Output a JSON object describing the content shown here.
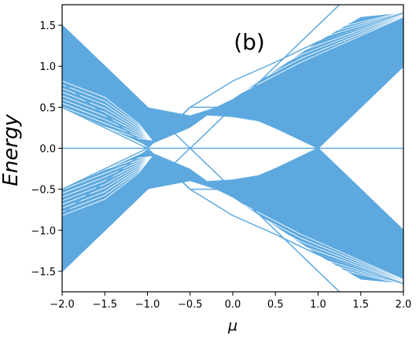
{
  "chart_data": {
    "type": "line",
    "panel_label": "(b)",
    "xlabel": "μ",
    "ylabel": "Energy",
    "xlim": [
      -2.0,
      2.0
    ],
    "ylim": [
      -1.75,
      1.75
    ],
    "xticks": [
      "−2.0",
      "−1.5",
      "−1.0",
      "−0.5",
      "0.0",
      "0.5",
      "1.0",
      "1.5",
      "2.0"
    ],
    "yticks": [
      "1.5",
      "1.0",
      "0.5",
      "0.0",
      "−0.5",
      "−1.0",
      "−1.5"
    ],
    "grid": false,
    "line_color": "#5DA9DF",
    "series": [
      {
        "x": [
          -2.0,
          -1.5,
          -1.0,
          -0.5,
          0.0,
          0.5,
          1.0,
          1.5,
          2.0
        ],
        "values": [
          1.5,
          1.0,
          0.5,
          0.0,
          0.5,
          1.0,
          1.5,
          2.0,
          2.5
        ]
      },
      {
        "x": [
          -2.0,
          -1.0,
          -0.5,
          0.0,
          0.5,
          1.0,
          1.5,
          2.0
        ],
        "values": [
          0.5,
          0.0,
          0.5,
          0.5,
          0.25,
          0.0,
          0.5,
          1.0
        ]
      },
      {
        "x": [
          -2.0,
          -1.0,
          -0.5,
          0.0,
          0.5,
          1.0,
          2.0
        ],
        "values": [
          0.8,
          0.02,
          0.5,
          0.82,
          1.05,
          1.3,
          1.65
        ]
      },
      {
        "x": [
          -2.0,
          2.0
        ],
        "values": [
          0.0,
          0.0
        ]
      },
      {
        "x": [
          -2.0,
          -1.0,
          -0.5,
          0.0,
          0.5,
          1.0,
          2.0
        ],
        "values": [
          -0.8,
          -0.02,
          -0.5,
          -0.82,
          -1.05,
          -1.3,
          -1.65
        ]
      },
      {
        "x": [
          -2.0,
          -1.0,
          -0.5,
          0.0,
          0.5,
          1.0,
          1.5,
          2.0
        ],
        "values": [
          -0.5,
          0.0,
          -0.5,
          -0.5,
          -0.25,
          0.0,
          -0.5,
          -1.0
        ]
      },
      {
        "x": [
          -2.0,
          -1.5,
          -1.0,
          -0.5,
          0.0,
          0.5,
          1.0,
          1.5,
          2.0
        ],
        "values": [
          -1.5,
          -1.0,
          -0.5,
          0.0,
          -0.5,
          -1.0,
          -1.5,
          -2.0,
          -2.5
        ]
      }
    ]
  }
}
